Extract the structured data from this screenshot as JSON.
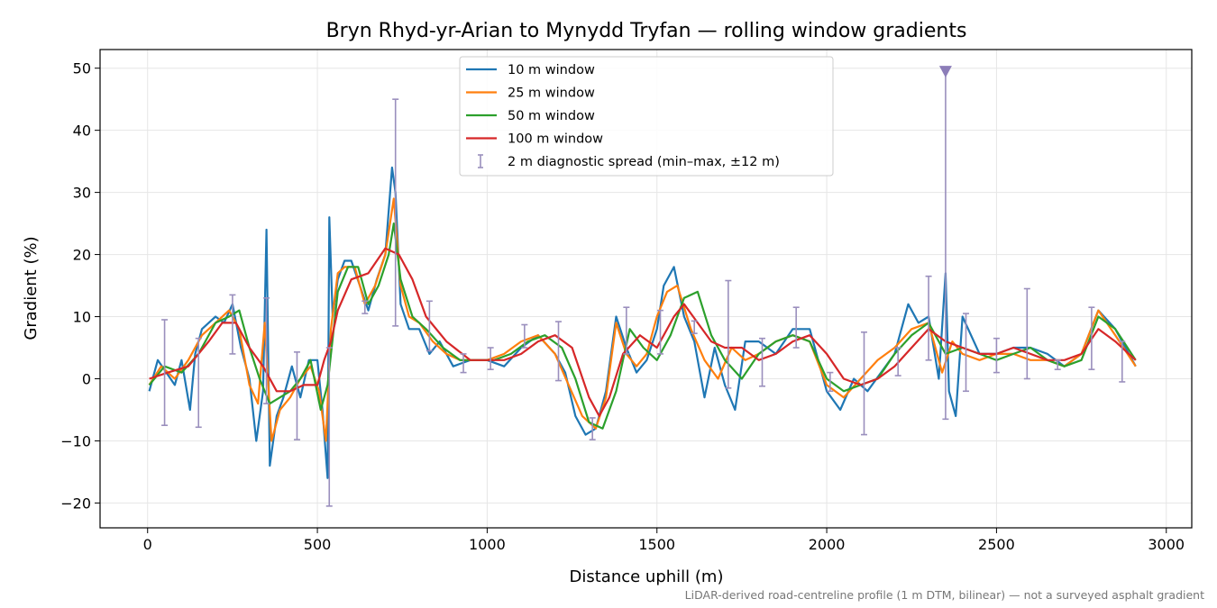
{
  "chart_data": {
    "type": "line",
    "title": "Bryn Rhyd-yr-Arian to Mynydd Tryfan — rolling window gradients",
    "xlabel": "Distance uphill (m)",
    "ylabel": "Gradient (%)",
    "xlim": [
      -140,
      3075
    ],
    "ylim": [
      -24,
      53
    ],
    "x_ticks": [
      0,
      500,
      1000,
      1500,
      2000,
      2500,
      3000
    ],
    "y_ticks": [
      -20,
      -10,
      0,
      10,
      20,
      30,
      40,
      50
    ],
    "x_tick_labels": [
      "0",
      "500",
      "1000",
      "1500",
      "2000",
      "2500",
      "3000"
    ],
    "y_tick_labels": [
      "−20",
      "−10",
      "0",
      "10",
      "20",
      "30",
      "40",
      "50"
    ],
    "grid": true,
    "legend_position": "top-center",
    "caption": "LiDAR-derived road-centreline profile (1 m DTM, bilinear) — not a surveyed asphalt gradient",
    "series": [
      {
        "name": "10 m window",
        "color": "#1f77b4",
        "x": [
          5,
          30,
          55,
          80,
          100,
          125,
          140,
          160,
          180,
          200,
          225,
          250,
          275,
          300,
          320,
          340,
          350,
          360,
          380,
          400,
          425,
          450,
          475,
          500,
          515,
          530,
          535,
          545,
          560,
          580,
          600,
          625,
          650,
          675,
          700,
          720,
          730,
          745,
          770,
          800,
          830,
          860,
          900,
          950,
          1000,
          1050,
          1100,
          1150,
          1200,
          1230,
          1260,
          1290,
          1320,
          1350,
          1380,
          1410,
          1440,
          1470,
          1500,
          1520,
          1550,
          1580,
          1610,
          1640,
          1670,
          1700,
          1730,
          1760,
          1800,
          1850,
          1900,
          1950,
          2000,
          2040,
          2080,
          2120,
          2160,
          2200,
          2240,
          2270,
          2300,
          2330,
          2350,
          2360,
          2380,
          2400,
          2450,
          2500,
          2550,
          2600,
          2650,
          2700,
          2750,
          2800,
          2850,
          2910
        ],
        "y": [
          -2,
          3,
          1,
          -1,
          3,
          -5,
          4,
          8,
          9,
          10,
          9,
          12,
          5,
          0,
          -10,
          -2,
          24,
          -14,
          -6,
          -3,
          2,
          -3,
          3,
          3,
          -5,
          -16,
          26,
          10,
          16,
          19,
          19,
          15,
          11,
          16,
          20,
          34,
          30,
          12,
          8,
          8,
          4,
          6,
          2,
          3,
          3,
          2,
          5,
          7,
          4,
          1,
          -6,
          -9,
          -8,
          -2,
          10,
          5,
          1,
          3,
          8,
          15,
          18,
          10,
          6,
          -3,
          5,
          -1,
          -5,
          6,
          6,
          4,
          8,
          8,
          -2,
          -5,
          0,
          -2,
          1,
          4,
          12,
          9,
          10,
          0,
          17,
          -2,
          -6,
          10,
          4,
          4,
          5,
          5,
          4,
          2,
          4,
          11,
          8,
          2
        ]
      },
      {
        "name": "25 m window",
        "color": "#ff7f0e",
        "x": [
          5,
          40,
          80,
          120,
          160,
          200,
          240,
          270,
          300,
          325,
          345,
          365,
          390,
          420,
          450,
          480,
          505,
          525,
          540,
          560,
          580,
          610,
          640,
          670,
          700,
          725,
          745,
          770,
          800,
          840,
          880,
          920,
          960,
          1000,
          1050,
          1100,
          1150,
          1200,
          1240,
          1280,
          1320,
          1350,
          1380,
          1410,
          1440,
          1470,
          1500,
          1530,
          1560,
          1600,
          1640,
          1680,
          1720,
          1760,
          1800,
          1850,
          1900,
          1950,
          2000,
          2050,
          2100,
          2150,
          2200,
          2250,
          2300,
          2340,
          2370,
          2400,
          2450,
          2500,
          2550,
          2600,
          2650,
          2700,
          2750,
          2800,
          2850,
          2910
        ],
        "y": [
          -1,
          2,
          0,
          3,
          7,
          9,
          11,
          8,
          -1,
          -4,
          9,
          -10,
          -5,
          -3,
          0,
          2,
          -2,
          -10,
          8,
          17,
          18,
          18,
          12,
          15,
          20,
          29,
          15,
          10,
          9,
          6,
          4,
          3,
          3,
          3,
          4,
          6,
          7,
          4,
          -1,
          -6,
          -8,
          -3,
          9,
          4,
          2,
          4,
          10,
          14,
          15,
          8,
          3,
          0,
          5,
          3,
          4,
          6,
          7,
          6,
          -1,
          -3,
          0,
          3,
          5,
          8,
          9,
          1,
          6,
          4,
          3,
          4,
          4,
          3,
          3,
          2,
          4,
          11,
          7,
          2
        ]
      },
      {
        "name": "50 m window",
        "color": "#2ca02c",
        "x": [
          5,
          50,
          100,
          150,
          200,
          240,
          270,
          300,
          330,
          360,
          390,
          420,
          450,
          480,
          510,
          530,
          560,
          590,
          620,
          650,
          680,
          710,
          725,
          745,
          780,
          820,
          870,
          920,
          970,
          1020,
          1070,
          1120,
          1170,
          1220,
          1260,
          1300,
          1340,
          1380,
          1420,
          1460,
          1500,
          1540,
          1580,
          1620,
          1660,
          1700,
          1750,
          1800,
          1850,
          1900,
          1950,
          2000,
          2050,
          2100,
          2150,
          2200,
          2250,
          2300,
          2350,
          2400,
          2450,
          2500,
          2550,
          2600,
          2650,
          2700,
          2750,
          2800,
          2850,
          2910
        ],
        "y": [
          -1,
          2,
          1,
          4,
          9,
          10,
          11,
          5,
          0,
          -4,
          -3,
          -2,
          0,
          3,
          -5,
          -1,
          14,
          18,
          18,
          12,
          15,
          20,
          25,
          16,
          10,
          8,
          5,
          3,
          3,
          3,
          4,
          6,
          7,
          5,
          0,
          -7,
          -8,
          -2,
          8,
          5,
          3,
          7,
          13,
          14,
          7,
          3,
          0,
          4,
          6,
          7,
          6,
          0,
          -2,
          -1,
          0,
          4,
          7,
          9,
          4,
          5,
          4,
          3,
          4,
          5,
          3,
          2,
          3,
          10,
          8,
          3
        ]
      },
      {
        "name": "100 m window",
        "color": "#d62728",
        "x": [
          5,
          60,
          120,
          180,
          220,
          260,
          300,
          340,
          380,
          420,
          460,
          500,
          520,
          540,
          560,
          600,
          650,
          700,
          740,
          780,
          820,
          880,
          950,
          1000,
          1050,
          1100,
          1150,
          1200,
          1250,
          1300,
          1330,
          1360,
          1400,
          1450,
          1500,
          1550,
          1580,
          1620,
          1660,
          1700,
          1750,
          1800,
          1850,
          1900,
          1950,
          2000,
          2050,
          2100,
          2150,
          2200,
          2250,
          2300,
          2350,
          2400,
          2450,
          2500,
          2550,
          2600,
          2650,
          2700,
          2750,
          2800,
          2850,
          2910
        ],
        "y": [
          0,
          1,
          2,
          6,
          9,
          9,
          5,
          2,
          -2,
          -2,
          -1,
          -1,
          3,
          6,
          11,
          16,
          17,
          21,
          20,
          16,
          10,
          6,
          3,
          3,
          3,
          4,
          6,
          7,
          5,
          -3,
          -6,
          -3,
          4,
          7,
          5,
          10,
          12,
          9,
          6,
          5,
          5,
          3,
          4,
          6,
          7,
          4,
          0,
          -1,
          0,
          2,
          5,
          8,
          6,
          5,
          4,
          4,
          5,
          4,
          3,
          3,
          4,
          8,
          6,
          3
        ]
      },
      {
        "name": "2 m diagnostic spread (min–max, ±12 m)",
        "color": "#9a8fbd",
        "type": "errorbar",
        "x": [
          50,
          150,
          250,
          350,
          440,
          535,
          640,
          730,
          830,
          930,
          1010,
          1110,
          1210,
          1310,
          1410,
          1510,
          1610,
          1710,
          1810,
          1910,
          2010,
          2110,
          2210,
          2300,
          2350,
          2410,
          2500,
          2590,
          2680,
          2780,
          2870
        ],
        "center": [
          1,
          0,
          10,
          -2,
          -3,
          -4,
          14,
          25,
          8,
          3,
          4,
          7,
          4,
          -8,
          6,
          6,
          8,
          6,
          3,
          7,
          0,
          -1,
          3,
          9,
          20,
          3,
          5,
          5,
          2,
          5,
          2
        ],
        "min": [
          -7.5,
          -7.8,
          4,
          -4,
          -9.8,
          -20.5,
          10.5,
          8.5,
          4.5,
          1,
          1.5,
          5,
          -0.3,
          -9.8,
          4,
          4,
          7.3,
          -1.5,
          -1.2,
          5,
          -2,
          -9,
          0.5,
          3,
          -6.5,
          -2,
          1,
          0,
          1.5,
          1.5,
          -0.5
        ],
        "max": [
          9.5,
          6.5,
          13.5,
          13,
          4.3,
          5,
          12.5,
          45,
          12.5,
          4,
          5,
          8.7,
          9.2,
          -6.3,
          11.5,
          11,
          9.3,
          15.8,
          6.5,
          11.5,
          1,
          7.5,
          5,
          16.5,
          50,
          10.5,
          6.5,
          14.5,
          3,
          11.5,
          6
        ]
      }
    ],
    "annotations": [
      {
        "type": "marker",
        "shape": "triangle-down",
        "x": 2350,
        "y": 49.5,
        "color": "#8c7db8"
      }
    ]
  }
}
